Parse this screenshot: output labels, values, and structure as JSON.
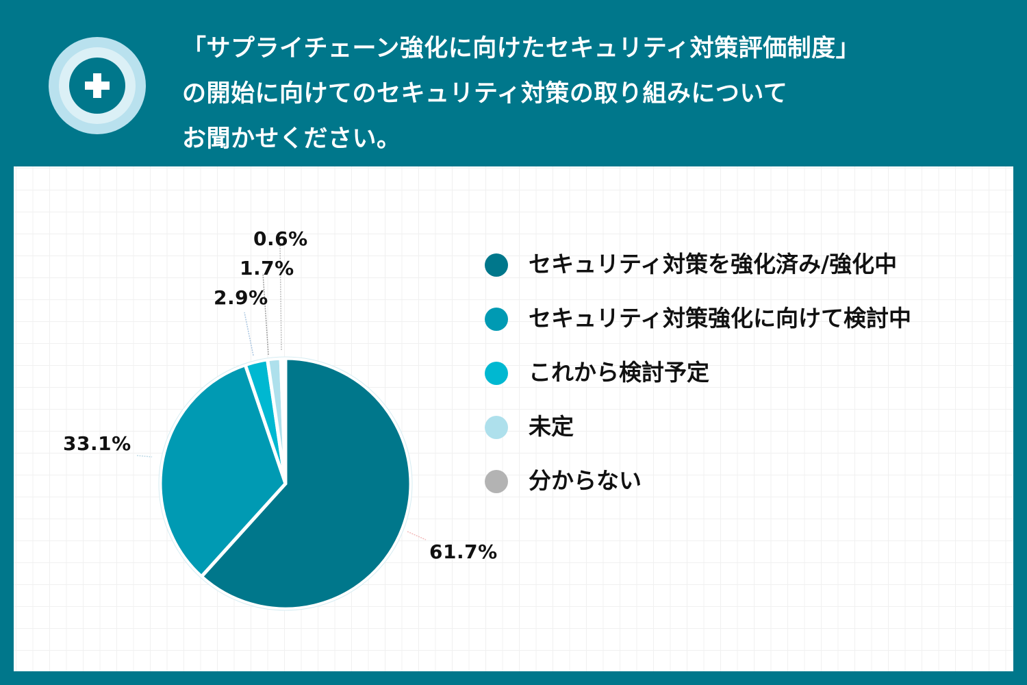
{
  "header": {
    "icon": "plus-in-circle-icon",
    "title_lines": [
      "「サプライチェーン強化に向けたセキュリティ対策評価制度」",
      "の開始に向けてのセキュリティ対策の取り組みについて",
      "お聞かせください。"
    ]
  },
  "colors": {
    "background": "#00778b",
    "panel": "#ffffff",
    "slice_1": "#00778b",
    "slice_2": "#009ab3",
    "slice_3": "#00b8d1",
    "slice_4": "#aee0ec",
    "slice_5": "#b3b3b3"
  },
  "legend": [
    {
      "label": "セキュリティ対策を強化済み/強化中",
      "color": "#00778b"
    },
    {
      "label": "セキュリティ対策強化に向けて検討中",
      "color": "#009ab3"
    },
    {
      "label": "これから検討予定",
      "color": "#00b8d1"
    },
    {
      "label": "未定",
      "color": "#aee0ec"
    },
    {
      "label": "分からない",
      "color": "#b3b3b3"
    }
  ],
  "labels": {
    "s1": "61.7%",
    "s2": "33.1%",
    "s3": "2.9%",
    "s4": "1.7%",
    "s5": "0.6%"
  },
  "chart_data": {
    "type": "pie",
    "title": "「サプライチェーン強化に向けたセキュリティ対策評価制度」の開始に向けてのセキュリティ対策の取り組みについてお聞かせください。",
    "categories": [
      "セキュリティ対策を強化済み/強化中",
      "セキュリティ対策強化に向けて検討中",
      "これから検討予定",
      "未定",
      "分からない"
    ],
    "values": [
      61.7,
      33.1,
      2.9,
      1.7,
      0.6
    ],
    "unit": "%",
    "start_angle": "12 o'clock",
    "direction": "clockwise",
    "legend_position": "right"
  }
}
